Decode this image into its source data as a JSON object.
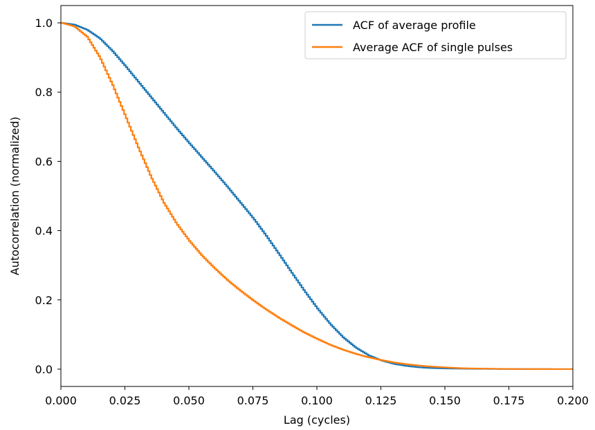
{
  "chart_data": {
    "type": "line",
    "title": "",
    "xlabel": "Lag (cycles)",
    "ylabel": "Autocorrelation (normalized)",
    "xlim": [
      0,
      0.2
    ],
    "ylim": [
      -0.05,
      1.05
    ],
    "x_ticks": [
      "0.000",
      "0.025",
      "0.050",
      "0.075",
      "0.100",
      "0.125",
      "0.150",
      "0.175",
      "0.200"
    ],
    "x_tick_values": [
      0,
      0.025,
      0.05,
      0.075,
      0.1,
      0.125,
      0.15,
      0.175,
      0.2
    ],
    "y_ticks": [
      "0.0",
      "0.2",
      "0.4",
      "0.6",
      "0.8",
      "1.0"
    ],
    "y_tick_values": [
      0,
      0.2,
      0.4,
      0.6,
      0.8,
      1.0
    ],
    "grid": false,
    "legend_position": "top-right",
    "x": [
      0,
      0.005,
      0.01,
      0.015,
      0.02,
      0.025,
      0.03,
      0.035,
      0.04,
      0.045,
      0.05,
      0.055,
      0.06,
      0.065,
      0.07,
      0.075,
      0.08,
      0.085,
      0.09,
      0.095,
      0.1,
      0.105,
      0.11,
      0.115,
      0.12,
      0.125,
      0.13,
      0.135,
      0.14,
      0.145,
      0.15,
      0.155,
      0.16,
      0.165,
      0.17,
      0.175,
      0.18,
      0.185,
      0.19,
      0.195,
      0.2
    ],
    "series": [
      {
        "name": "ACF of average profile",
        "color": "#1f77b4",
        "values": [
          1.0,
          0.995,
          0.98,
          0.955,
          0.918,
          0.875,
          0.83,
          0.785,
          0.74,
          0.695,
          0.652,
          0.61,
          0.568,
          0.525,
          0.48,
          0.435,
          0.385,
          0.332,
          0.278,
          0.225,
          0.175,
          0.13,
          0.092,
          0.062,
          0.04,
          0.025,
          0.015,
          0.009,
          0.005,
          0.003,
          0.002,
          0.0015,
          0.001,
          0.0008,
          0.0005,
          0.0003,
          0.0002,
          0.0001,
          0.0001,
          0.0,
          0.0
        ]
      },
      {
        "name": "Average ACF of single pulses",
        "color": "#ff7f0e",
        "values": [
          1.0,
          0.99,
          0.96,
          0.9,
          0.82,
          0.73,
          0.64,
          0.555,
          0.48,
          0.42,
          0.37,
          0.327,
          0.29,
          0.256,
          0.226,
          0.198,
          0.172,
          0.148,
          0.126,
          0.105,
          0.087,
          0.07,
          0.056,
          0.044,
          0.034,
          0.026,
          0.019,
          0.014,
          0.01,
          0.007,
          0.005,
          0.003,
          0.002,
          0.0015,
          0.001,
          0.0005,
          0.0003,
          0.0002,
          0.0001,
          0.0,
          0.0
        ]
      }
    ]
  }
}
